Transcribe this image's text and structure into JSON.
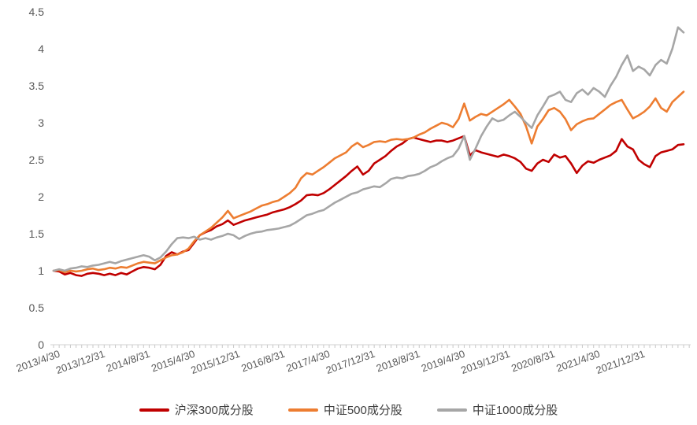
{
  "chart_data": {
    "type": "line",
    "title": "",
    "xlabel": "",
    "ylabel": "",
    "ylim": [
      0,
      4.5
    ],
    "y_ticks": [
      0,
      0.5,
      1,
      1.5,
      2,
      2.5,
      3,
      3.5,
      4,
      4.5
    ],
    "y_tick_labels": [
      "0",
      "0.5",
      "1",
      "1.5",
      "2",
      "2.5",
      "3",
      "3.5",
      "4",
      "4.5"
    ],
    "x_tick_labels": [
      "2013/4/30",
      "2013/12/31",
      "2014/8/31",
      "2015/4/30",
      "2015/12/31",
      "2016/8/31",
      "2017/4/30",
      "2017/12/31",
      "2018/8/31",
      "2019/4/30",
      "2019/12/31",
      "2020/8/31",
      "2021/4/30",
      "2021/12/31"
    ],
    "x_label_interval": 8,
    "x_frequency": "monthly",
    "points_count": 113,
    "grid": false,
    "legend_position": "bottom",
    "x_tick_label_rotation_deg": -20,
    "series": [
      {
        "name": "沪深300成分股",
        "color": "#C00000",
        "values": [
          1.0,
          0.99,
          0.95,
          0.97,
          0.94,
          0.93,
          0.96,
          0.97,
          0.96,
          0.94,
          0.96,
          0.94,
          0.97,
          0.95,
          0.99,
          1.03,
          1.05,
          1.04,
          1.02,
          1.08,
          1.2,
          1.25,
          1.22,
          1.26,
          1.28,
          1.38,
          1.48,
          1.52,
          1.55,
          1.6,
          1.63,
          1.68,
          1.62,
          1.65,
          1.68,
          1.7,
          1.72,
          1.74,
          1.76,
          1.79,
          1.81,
          1.83,
          1.86,
          1.9,
          1.95,
          2.02,
          2.03,
          2.02,
          2.05,
          2.1,
          2.16,
          2.22,
          2.28,
          2.35,
          2.41,
          2.3,
          2.35,
          2.45,
          2.5,
          2.55,
          2.62,
          2.68,
          2.72,
          2.78,
          2.8,
          2.78,
          2.76,
          2.74,
          2.76,
          2.76,
          2.74,
          2.76,
          2.79,
          2.82,
          2.56,
          2.63,
          2.6,
          2.58,
          2.56,
          2.54,
          2.57,
          2.55,
          2.52,
          2.47,
          2.38,
          2.35,
          2.45,
          2.5,
          2.47,
          2.57,
          2.53,
          2.55,
          2.45,
          2.32,
          2.42,
          2.48,
          2.46,
          2.5,
          2.53,
          2.56,
          2.62,
          2.78,
          2.68,
          2.64,
          2.5,
          2.44,
          2.4,
          2.55,
          2.6,
          2.62,
          2.64,
          2.7,
          2.71
        ]
      },
      {
        "name": "中证500成分股",
        "color": "#ED7D31",
        "values": [
          1.0,
          1.01,
          0.98,
          1.0,
          0.99,
          1.0,
          1.02,
          1.03,
          1.01,
          1.02,
          1.04,
          1.03,
          1.05,
          1.04,
          1.07,
          1.1,
          1.12,
          1.11,
          1.1,
          1.14,
          1.18,
          1.21,
          1.22,
          1.25,
          1.3,
          1.4,
          1.48,
          1.53,
          1.58,
          1.65,
          1.72,
          1.81,
          1.71,
          1.74,
          1.77,
          1.8,
          1.84,
          1.88,
          1.9,
          1.93,
          1.95,
          2.0,
          2.05,
          2.12,
          2.25,
          2.32,
          2.3,
          2.35,
          2.4,
          2.46,
          2.52,
          2.56,
          2.6,
          2.68,
          2.73,
          2.67,
          2.7,
          2.74,
          2.75,
          2.74,
          2.77,
          2.78,
          2.77,
          2.78,
          2.8,
          2.84,
          2.87,
          2.92,
          2.96,
          3.0,
          2.98,
          2.94,
          3.05,
          3.26,
          3.03,
          3.08,
          3.12,
          3.1,
          3.15,
          3.2,
          3.25,
          3.31,
          3.22,
          3.12,
          2.95,
          2.72,
          2.95,
          3.05,
          3.17,
          3.2,
          3.15,
          3.05,
          2.9,
          2.98,
          3.02,
          3.05,
          3.06,
          3.12,
          3.18,
          3.24,
          3.28,
          3.31,
          3.18,
          3.06,
          3.1,
          3.15,
          3.22,
          3.33,
          3.2,
          3.15,
          3.28,
          3.35,
          3.42
        ]
      },
      {
        "name": "中证1000成分股",
        "color": "#A6A6A6",
        "values": [
          1.0,
          1.02,
          1.0,
          1.03,
          1.04,
          1.06,
          1.05,
          1.07,
          1.08,
          1.1,
          1.12,
          1.1,
          1.13,
          1.15,
          1.17,
          1.19,
          1.21,
          1.19,
          1.14,
          1.18,
          1.26,
          1.36,
          1.44,
          1.45,
          1.44,
          1.46,
          1.42,
          1.44,
          1.42,
          1.45,
          1.47,
          1.5,
          1.48,
          1.43,
          1.47,
          1.5,
          1.52,
          1.53,
          1.55,
          1.56,
          1.57,
          1.59,
          1.61,
          1.65,
          1.7,
          1.75,
          1.77,
          1.8,
          1.82,
          1.87,
          1.92,
          1.96,
          2.0,
          2.04,
          2.06,
          2.1,
          2.12,
          2.14,
          2.13,
          2.18,
          2.24,
          2.26,
          2.25,
          2.28,
          2.29,
          2.31,
          2.35,
          2.4,
          2.43,
          2.48,
          2.52,
          2.55,
          2.65,
          2.82,
          2.5,
          2.65,
          2.82,
          2.95,
          3.06,
          3.02,
          3.04,
          3.1,
          3.15,
          3.08,
          3.0,
          2.93,
          3.1,
          3.22,
          3.35,
          3.38,
          3.42,
          3.31,
          3.28,
          3.4,
          3.45,
          3.38,
          3.47,
          3.42,
          3.35,
          3.5,
          3.62,
          3.78,
          3.91,
          3.7,
          3.76,
          3.72,
          3.64,
          3.78,
          3.85,
          3.8,
          4.0,
          4.29,
          4.22
        ]
      }
    ]
  },
  "axis": {
    "label_color": "#595959",
    "line_color": "#D2D2D2",
    "tick_color": "#C8C8C8"
  },
  "legend": {
    "text_color": "#404040"
  }
}
